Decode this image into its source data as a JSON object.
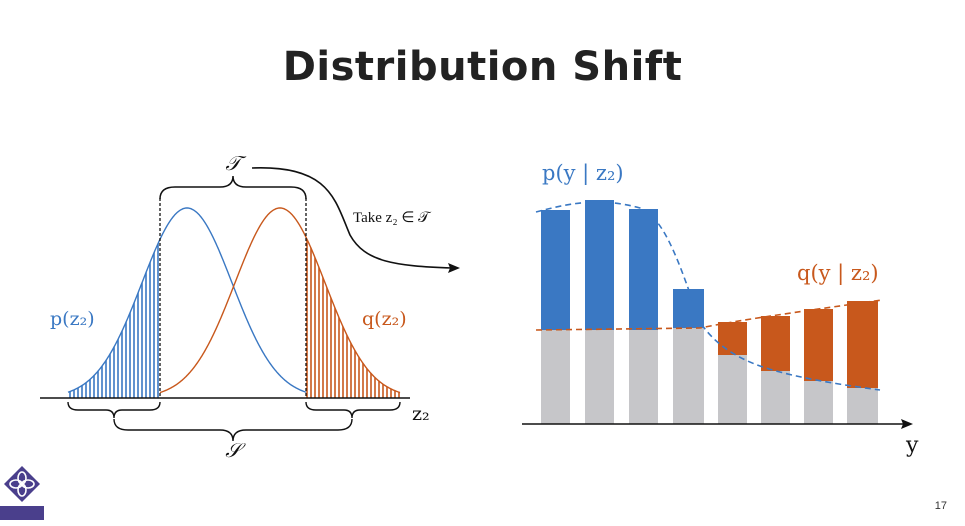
{
  "slide": {
    "title": "Distribution Shift",
    "page_number": "17"
  },
  "left_diagram": {
    "label_T": "𝒯",
    "label_S": "𝒮",
    "label_p": "p(z₂)",
    "label_q": "q(z₂)",
    "axis_label": "z₂",
    "arrow_text": "Take z₂ ∈ 𝒯"
  },
  "right_diagram": {
    "label_p": "p(y | z₂)",
    "label_q": "q(y | z₂)",
    "axis_label": "y"
  },
  "colors": {
    "blue": "#3a78c3",
    "orange": "#c8581c",
    "gray": "#c6c6c9",
    "title": "#222222"
  }
}
